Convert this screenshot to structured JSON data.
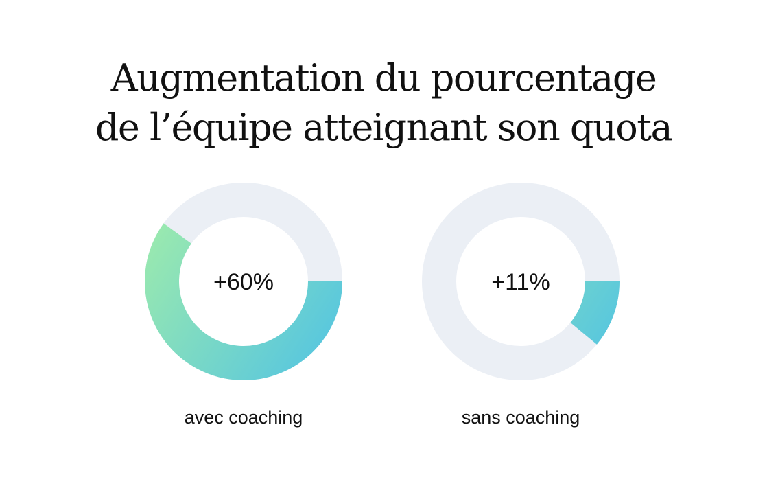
{
  "title_lines": [
    "Augmentation du pourcentage",
    "de l’équipe atteignant son quota"
  ],
  "colors": {
    "track": "#ebeff5",
    "gradient_start": "#98e8b0",
    "gradient_end": "#4fc2e5",
    "text": "#111111"
  },
  "chart_data": {
    "type": "pie",
    "title": "Augmentation du pourcentage de l’équipe atteignant son quota",
    "donuts": [
      {
        "category": "avec coaching",
        "value": 60,
        "label": "+60%"
      },
      {
        "category": "sans coaching",
        "value": 11,
        "label": "+11%"
      }
    ],
    "max": 100
  }
}
